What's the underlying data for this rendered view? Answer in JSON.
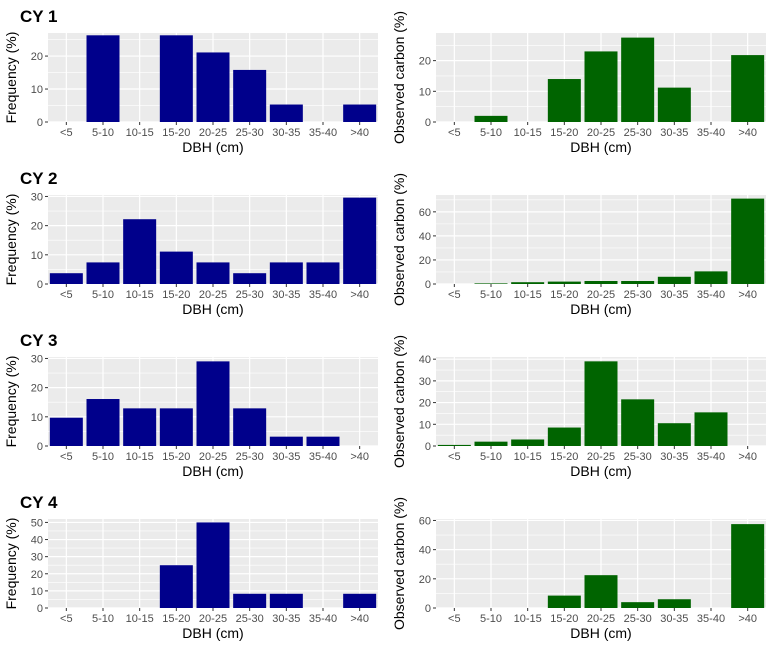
{
  "categories": [
    "<5",
    "5-10",
    "10-15",
    "15-20",
    "20-25",
    "25-30",
    "30-35",
    "35-40",
    ">40"
  ],
  "xlabel": "DBH (cm)",
  "colors": {
    "frequency": "#00008B",
    "carbon": "#006400",
    "panel": "#EBEBEB",
    "grid": "#FFFFFF"
  },
  "rows": [
    {
      "title": "CY 1",
      "frequency": {
        "type": "bar",
        "ylabel": "Frequency (%)",
        "ylim": [
          0,
          27
        ],
        "yticks": [
          0,
          10,
          20
        ],
        "values": [
          0,
          26.3,
          0,
          26.3,
          21.1,
          15.8,
          5.3,
          0,
          5.3
        ]
      },
      "carbon": {
        "type": "bar",
        "ylabel": "Observed carbon (%)",
        "ylim": [
          0,
          29
        ],
        "yticks": [
          0,
          10,
          20
        ],
        "values": [
          0,
          2,
          0,
          14,
          23,
          27.5,
          11.2,
          0,
          21.8
        ]
      }
    },
    {
      "title": "CY 2",
      "frequency": {
        "type": "bar",
        "ylabel": "Frequency (%)",
        "ylim": [
          0,
          30.5
        ],
        "yticks": [
          0,
          10,
          20,
          30
        ],
        "values": [
          3.7,
          7.4,
          22.2,
          11.1,
          7.4,
          3.7,
          7.4,
          7.4,
          29.6
        ]
      },
      "carbon": {
        "type": "bar",
        "ylabel": "Observed carbon (%)",
        "ylim": [
          0,
          74
        ],
        "yticks": [
          0,
          20,
          40,
          60
        ],
        "values": [
          0,
          0.5,
          1.5,
          2,
          2.5,
          2.5,
          6,
          10.5,
          71
        ]
      }
    },
    {
      "title": "CY 3",
      "frequency": {
        "type": "bar",
        "ylabel": "Frequency (%)",
        "ylim": [
          0,
          30.5
        ],
        "yticks": [
          0,
          10,
          20,
          30
        ],
        "values": [
          9.7,
          16.1,
          12.9,
          12.9,
          29.0,
          12.9,
          3.2,
          3.2,
          0
        ]
      },
      "carbon": {
        "type": "bar",
        "ylabel": "Observed carbon (%)",
        "ylim": [
          0,
          41
        ],
        "yticks": [
          0,
          10,
          20,
          30,
          40
        ],
        "values": [
          0.5,
          2,
          3,
          8.5,
          39,
          21.5,
          10.5,
          15.5,
          0
        ]
      }
    },
    {
      "title": "CY 4",
      "frequency": {
        "type": "bar",
        "ylabel": "Frequency (%)",
        "ylim": [
          0,
          52
        ],
        "yticks": [
          0,
          10,
          20,
          30,
          40,
          50
        ],
        "values": [
          0,
          0,
          0,
          25,
          50,
          8.3,
          8.3,
          0,
          8.3
        ]
      },
      "carbon": {
        "type": "bar",
        "ylabel": "Observed carbon (%)",
        "ylim": [
          0,
          61
        ],
        "yticks": [
          0,
          20,
          40,
          60
        ],
        "values": [
          0,
          0,
          0,
          8.5,
          22.5,
          4,
          6,
          0,
          57.5
        ]
      }
    }
  ]
}
